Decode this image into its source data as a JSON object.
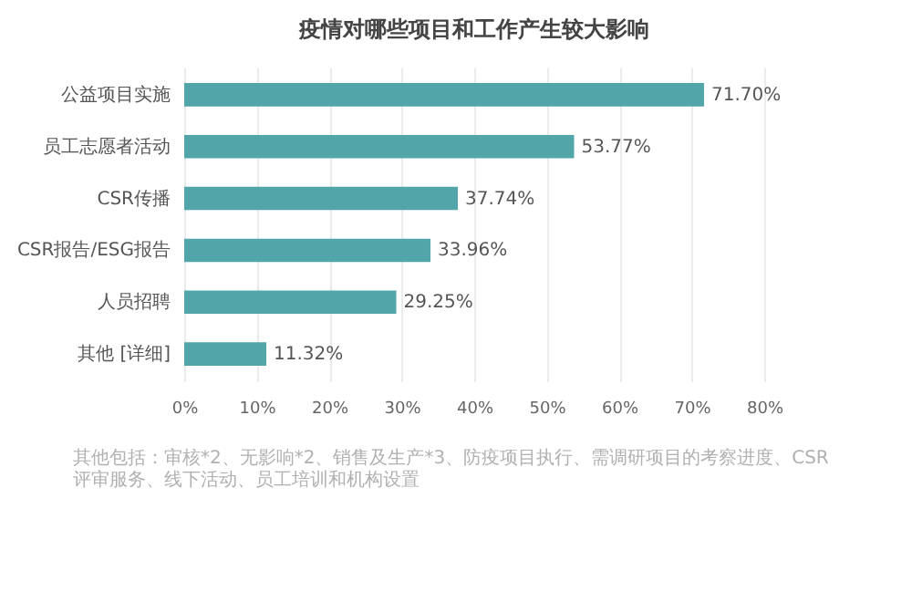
{
  "chart_data": {
    "type": "bar",
    "orientation": "horizontal",
    "title": "疫情对哪些项目和工作产生较大影响",
    "categories": [
      "公益项目实施",
      "员工志愿者活动",
      "CSR传播",
      "CSR报告/ESG报告",
      "人员招聘",
      "其他 [详细]"
    ],
    "values": [
      71.7,
      53.77,
      37.74,
      33.96,
      29.25,
      11.32
    ],
    "value_labels": [
      "71.70%",
      "53.77%",
      "37.74%",
      "33.96%",
      "29.25%",
      "11.32%"
    ],
    "color": "#52a5a8",
    "xlim": [
      0,
      80
    ],
    "xticks": [
      {
        "value": 0,
        "label": "0%"
      },
      {
        "value": 10,
        "label": "10%"
      },
      {
        "value": 20,
        "label": "20%"
      },
      {
        "value": 30,
        "label": "30%"
      },
      {
        "value": 40,
        "label": "40%"
      },
      {
        "value": 50,
        "label": "50%"
      },
      {
        "value": 60,
        "label": "60%"
      },
      {
        "value": 70,
        "label": "70%"
      },
      {
        "value": 80,
        "label": "80%"
      }
    ],
    "grid": "x",
    "annotations": [
      "其他包括：审核*2、无影响*2、销售及生产*3、防疫项目执行、需调研项目的考察进度、CSR评审服务、线下活动、员工培训和机构设置"
    ]
  }
}
